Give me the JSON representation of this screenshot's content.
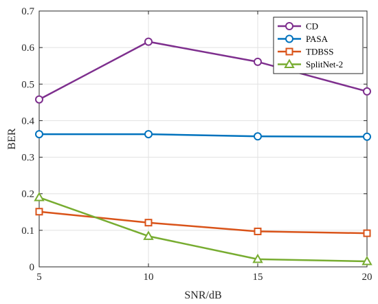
{
  "chart_data": {
    "type": "line",
    "xlabel": "SNR/dB",
    "ylabel": "BER",
    "x": [
      5,
      10,
      15,
      20
    ],
    "xlim": [
      5,
      20
    ],
    "ylim": [
      0,
      0.7
    ],
    "xticks": [
      5,
      10,
      15,
      20
    ],
    "yticks": [
      0,
      0.1,
      0.2,
      0.3,
      0.4,
      0.5,
      0.6,
      0.7
    ],
    "xtick_labels": [
      "5",
      "10",
      "15",
      "20"
    ],
    "ytick_labels": [
      "0",
      "0.1",
      "0.2",
      "0.3",
      "0.4",
      "0.5",
      "0.6",
      "0.7"
    ],
    "grid": true,
    "legend_position": "top-right",
    "series": [
      {
        "name": "CD",
        "values": [
          0.458,
          0.616,
          0.561,
          0.48
        ],
        "color": "#7E2F8E",
        "marker": "circle"
      },
      {
        "name": "PASA",
        "values": [
          0.363,
          0.363,
          0.357,
          0.356
        ],
        "color": "#0072BD",
        "marker": "circle"
      },
      {
        "name": "TDBSS",
        "values": [
          0.151,
          0.121,
          0.097,
          0.092
        ],
        "color": "#D95319",
        "marker": "square"
      },
      {
        "name": "SplitNet-2",
        "values": [
          0.19,
          0.084,
          0.021,
          0.015
        ],
        "color": "#77AC30",
        "marker": "triangle"
      }
    ]
  }
}
